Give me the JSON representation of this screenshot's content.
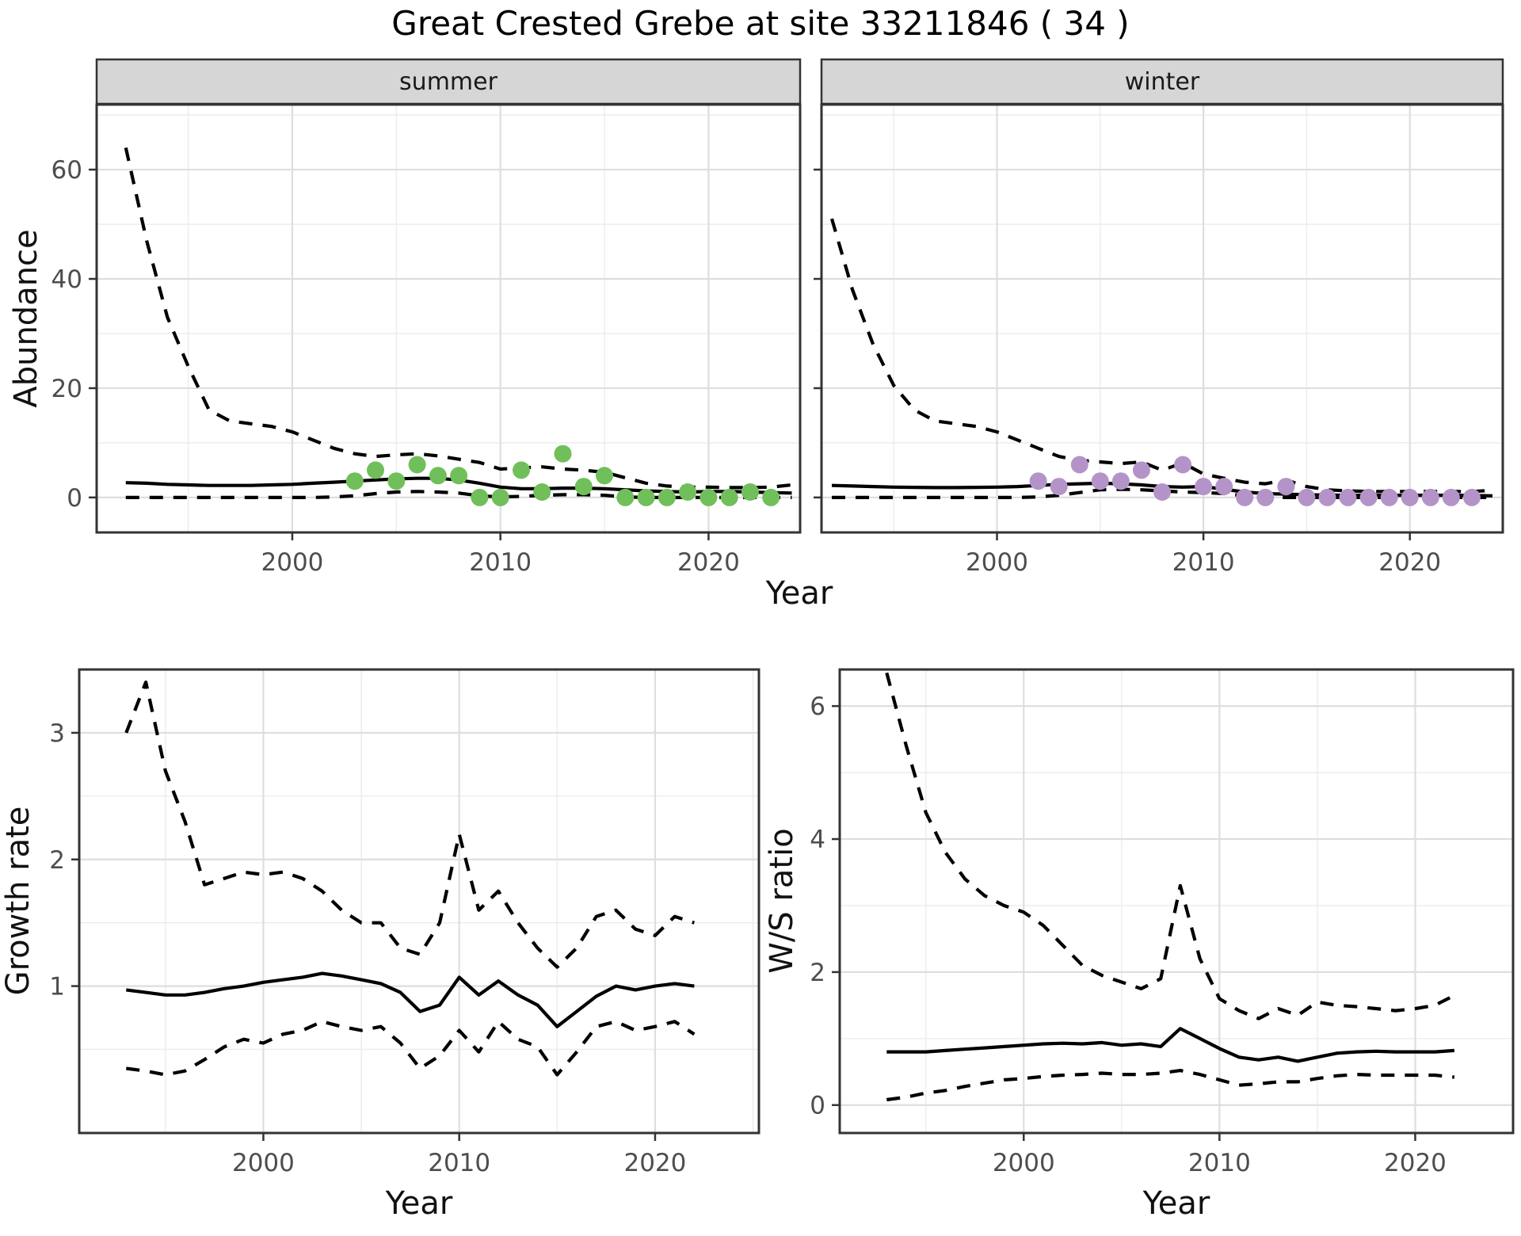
{
  "figure": {
    "title": "Great Crested Grebe at site 33211846 ( 34 )",
    "background_color": "#ffffff",
    "line_color": "#000000",
    "major_grid_color": "#dedede",
    "minor_grid_color": "#ececec",
    "panel_border_color": "#333333",
    "strip_background": "#d6d6d6",
    "tick_label_color": "#4d4d4d",
    "summer_point_color": "#70bf5a",
    "winter_point_color": "#b494c8"
  },
  "chart_data": [
    {
      "id": "abundance-summer",
      "type": "line",
      "facet_label": "summer",
      "xlabel": "Year",
      "ylabel": "Abundance",
      "x_ticks": [
        2000,
        2010,
        2020
      ],
      "x_minor": [
        1995,
        2005,
        2015,
        2025
      ],
      "y_ticks": [
        0,
        20,
        40,
        60
      ],
      "y_minor": [
        10,
        30,
        50,
        70
      ],
      "xlim": [
        1990.6,
        2024.4
      ],
      "ylim": [
        -6.4,
        71.9
      ],
      "grid": true,
      "legend": "none",
      "x": [
        1992,
        1993,
        1994,
        1995,
        1996,
        1997,
        1998,
        1999,
        2000,
        2001,
        2002,
        2003,
        2004,
        2005,
        2006,
        2007,
        2008,
        2009,
        2010,
        2011,
        2012,
        2013,
        2014,
        2015,
        2016,
        2017,
        2018,
        2019,
        2020,
        2021,
        2022,
        2023,
        2024
      ],
      "series": [
        {
          "name": "median",
          "style": "solid",
          "values": [
            2.7,
            2.6,
            2.4,
            2.3,
            2.2,
            2.2,
            2.2,
            2.3,
            2.4,
            2.6,
            2.8,
            3.0,
            3.2,
            3.4,
            3.5,
            3.5,
            3.2,
            2.6,
            1.9,
            1.6,
            1.6,
            1.7,
            1.7,
            1.6,
            1.4,
            1.2,
            1.1,
            1.0,
            1.1,
            1.1,
            1.0,
            0.9,
            0.8
          ]
        },
        {
          "name": "upper_ci",
          "style": "dashed",
          "values": [
            64,
            47,
            33,
            24,
            16,
            14,
            13.5,
            13,
            12,
            10.5,
            9,
            8,
            7.5,
            7.8,
            8,
            7.6,
            7,
            6.4,
            5.2,
            5.4,
            5.6,
            5.2,
            5,
            4.6,
            3.6,
            2.6,
            2.1,
            1.9,
            1.9,
            1.8,
            1.8,
            1.9,
            2.3
          ]
        },
        {
          "name": "lower_ci",
          "style": "dashed",
          "values": [
            0,
            0,
            0,
            0,
            0,
            0,
            0,
            0,
            0,
            0,
            0.1,
            0.3,
            0.7,
            1.0,
            1.1,
            1.0,
            0.8,
            0.3,
            0.1,
            0.2,
            0.4,
            0.5,
            0.5,
            0.4,
            0.1,
            0,
            0,
            0,
            0,
            0,
            0,
            0,
            0
          ]
        }
      ],
      "points": {
        "name": "observed-counts-summer",
        "color": "#70bf5a",
        "x": [
          2003,
          2004,
          2005,
          2006,
          2007,
          2008,
          2009,
          2010,
          2011,
          2012,
          2013,
          2014,
          2015,
          2016,
          2017,
          2018,
          2019,
          2020,
          2021,
          2022,
          2023
        ],
        "y": [
          3,
          5,
          3,
          6,
          4,
          4,
          0,
          0,
          5,
          1,
          8,
          2,
          4,
          0,
          0,
          0,
          1,
          0,
          0,
          1,
          0
        ]
      }
    },
    {
      "id": "abundance-winter",
      "type": "line",
      "facet_label": "winter",
      "xlabel": "Year",
      "ylabel": "Abundance",
      "x_ticks": [
        2000,
        2010,
        2020
      ],
      "x_minor": [
        1995,
        2005,
        2015,
        2025
      ],
      "y_ticks": [
        0,
        20,
        40,
        60
      ],
      "y_minor": [
        10,
        30,
        50,
        70
      ],
      "xlim": [
        1991.5,
        2024.5
      ],
      "ylim": [
        -6.4,
        71.9
      ],
      "grid": true,
      "legend": "none",
      "x": [
        1992,
        1993,
        1994,
        1995,
        1996,
        1997,
        1998,
        1999,
        2000,
        2001,
        2002,
        2003,
        2004,
        2005,
        2006,
        2007,
        2008,
        2009,
        2010,
        2011,
        2012,
        2013,
        2014,
        2015,
        2016,
        2017,
        2018,
        2019,
        2020,
        2021,
        2022,
        2023,
        2024
      ],
      "series": [
        {
          "name": "median",
          "style": "solid",
          "values": [
            2.2,
            2.1,
            2.0,
            1.9,
            1.85,
            1.8,
            1.8,
            1.85,
            1.9,
            2.0,
            2.2,
            2.4,
            2.5,
            2.6,
            2.5,
            2.3,
            2.0,
            1.9,
            2.0,
            1.5,
            1.0,
            0.7,
            0.6,
            0.5,
            0.45,
            0.4,
            0.4,
            0.4,
            0.4,
            0.4,
            0.4,
            0.35,
            0.3
          ]
        },
        {
          "name": "upper_ci",
          "style": "dashed",
          "values": [
            51,
            38,
            28,
            20.5,
            16,
            14,
            13.5,
            13,
            12,
            10.5,
            9,
            7.5,
            6.8,
            6.5,
            6.2,
            6.5,
            5.0,
            6.3,
            4.3,
            3.5,
            2.8,
            2.5,
            3.2,
            2.0,
            1.4,
            1.2,
            1.1,
            1.1,
            1.1,
            1.1,
            1.1,
            1.1,
            1.3
          ]
        },
        {
          "name": "lower_ci",
          "style": "dashed",
          "values": [
            0,
            0,
            0,
            0,
            0,
            0,
            0,
            0,
            0,
            0,
            0.1,
            0.4,
            0.9,
            1.4,
            1.5,
            1.4,
            1.2,
            1.0,
            0.9,
            0.7,
            0.3,
            0.1,
            0,
            0,
            0,
            0,
            0,
            0,
            0,
            0,
            0,
            0,
            0
          ]
        }
      ],
      "points": {
        "name": "observed-counts-winter",
        "color": "#b494c8",
        "x": [
          2002,
          2003,
          2004,
          2005,
          2006,
          2007,
          2008,
          2009,
          2010,
          2011,
          2012,
          2013,
          2014,
          2015,
          2016,
          2017,
          2018,
          2019,
          2020,
          2021,
          2022,
          2023
        ],
        "y": [
          3,
          2,
          6,
          3,
          3,
          5,
          1,
          6,
          2,
          2,
          0,
          0,
          2,
          0,
          0,
          0,
          0,
          0,
          0,
          0,
          0,
          0
        ]
      }
    },
    {
      "id": "growth-rate",
      "type": "line",
      "facet_label": "",
      "xlabel": "Year",
      "ylabel": "Growth rate",
      "x_ticks": [
        2000,
        2010,
        2020
      ],
      "x_minor": [
        1995,
        2005,
        2015,
        2025
      ],
      "y_ticks": [
        1,
        2,
        3
      ],
      "y_minor": [
        0.5,
        1.5,
        2.5
      ],
      "xlim": [
        1990.6,
        2025.3
      ],
      "ylim": [
        -0.16,
        3.5
      ],
      "grid": true,
      "legend": "none",
      "x": [
        1993,
        1994,
        1995,
        1996,
        1997,
        1998,
        1999,
        2000,
        2001,
        2002,
        2003,
        2004,
        2005,
        2006,
        2007,
        2008,
        2009,
        2010,
        2011,
        2012,
        2013,
        2014,
        2015,
        2016,
        2017,
        2018,
        2019,
        2020,
        2021,
        2022
      ],
      "series": [
        {
          "name": "median",
          "style": "solid",
          "values": [
            0.97,
            0.95,
            0.93,
            0.93,
            0.95,
            0.98,
            1.0,
            1.03,
            1.05,
            1.07,
            1.1,
            1.08,
            1.05,
            1.02,
            0.95,
            0.8,
            0.85,
            1.07,
            0.93,
            1.04,
            0.93,
            0.85,
            0.68,
            0.8,
            0.92,
            1.0,
            0.97,
            1.0,
            1.02,
            1.0
          ]
        },
        {
          "name": "upper_ci",
          "style": "dashed",
          "values": [
            3.0,
            3.4,
            2.7,
            2.3,
            1.8,
            1.85,
            1.9,
            1.88,
            1.9,
            1.85,
            1.75,
            1.6,
            1.5,
            1.5,
            1.3,
            1.25,
            1.5,
            2.2,
            1.6,
            1.75,
            1.5,
            1.3,
            1.15,
            1.3,
            1.55,
            1.6,
            1.45,
            1.4,
            1.55,
            1.5
          ]
        },
        {
          "name": "lower_ci",
          "style": "dashed",
          "values": [
            0.35,
            0.33,
            0.3,
            0.33,
            0.42,
            0.52,
            0.58,
            0.55,
            0.62,
            0.65,
            0.72,
            0.68,
            0.65,
            0.68,
            0.55,
            0.35,
            0.45,
            0.65,
            0.48,
            0.72,
            0.58,
            0.52,
            0.3,
            0.48,
            0.68,
            0.72,
            0.65,
            0.68,
            0.72,
            0.62
          ]
        }
      ]
    },
    {
      "id": "ws-ratio",
      "type": "line",
      "facet_label": "",
      "xlabel": "Year",
      "ylabel": "W/S ratio",
      "x_ticks": [
        2000,
        2010,
        2020
      ],
      "x_minor": [
        1995,
        2005,
        2015,
        2025
      ],
      "y_ticks": [
        0,
        2,
        4,
        6
      ],
      "y_minor": [
        1,
        3,
        5
      ],
      "xlim": [
        1990.6,
        2025.0
      ],
      "ylim": [
        -0.42,
        6.55
      ],
      "grid": true,
      "legend": "none",
      "x": [
        1993,
        1994,
        1995,
        1996,
        1997,
        1998,
        1999,
        2000,
        2001,
        2002,
        2003,
        2004,
        2005,
        2006,
        2007,
        2008,
        2009,
        2010,
        2011,
        2012,
        2013,
        2014,
        2015,
        2016,
        2017,
        2018,
        2019,
        2020,
        2021,
        2022
      ],
      "series": [
        {
          "name": "median",
          "style": "solid",
          "values": [
            0.8,
            0.8,
            0.8,
            0.82,
            0.84,
            0.86,
            0.88,
            0.9,
            0.92,
            0.93,
            0.92,
            0.94,
            0.9,
            0.92,
            0.88,
            1.15,
            1.0,
            0.85,
            0.72,
            0.68,
            0.72,
            0.66,
            0.72,
            0.78,
            0.8,
            0.81,
            0.8,
            0.8,
            0.8,
            0.82
          ]
        },
        {
          "name": "upper_ci",
          "style": "dashed",
          "values": [
            6.5,
            5.4,
            4.4,
            3.8,
            3.4,
            3.15,
            3.0,
            2.9,
            2.7,
            2.4,
            2.1,
            1.95,
            1.85,
            1.75,
            1.9,
            3.3,
            2.2,
            1.6,
            1.42,
            1.3,
            1.45,
            1.35,
            1.55,
            1.5,
            1.48,
            1.45,
            1.42,
            1.45,
            1.5,
            1.65
          ]
        },
        {
          "name": "lower_ci",
          "style": "dashed",
          "values": [
            0.08,
            0.12,
            0.18,
            0.22,
            0.28,
            0.33,
            0.38,
            0.4,
            0.43,
            0.45,
            0.46,
            0.48,
            0.46,
            0.46,
            0.48,
            0.52,
            0.46,
            0.38,
            0.3,
            0.32,
            0.35,
            0.35,
            0.4,
            0.44,
            0.46,
            0.45,
            0.45,
            0.45,
            0.45,
            0.42
          ]
        }
      ]
    }
  ]
}
